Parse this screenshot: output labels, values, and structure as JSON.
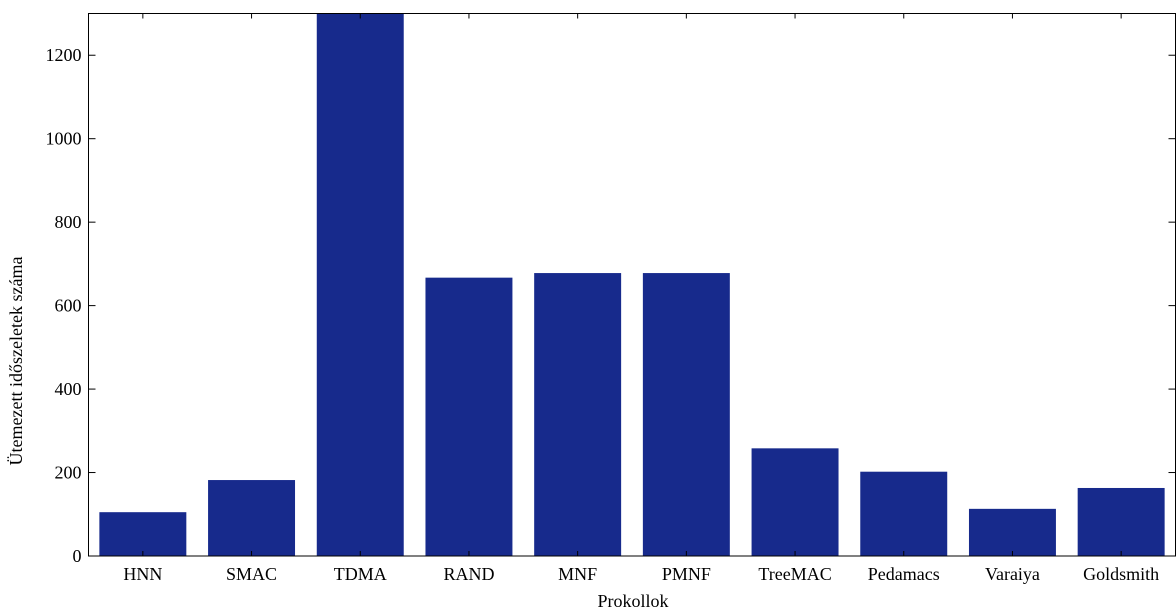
{
  "chart_data": {
    "type": "bar",
    "categories": [
      "HNN",
      "SMAC",
      "TDMA",
      "RAND",
      "MNF",
      "PMNF",
      "TreeMAC",
      "Pedamacs",
      "Varaiya",
      "Goldsmith"
    ],
    "values": [
      105,
      182,
      1300,
      667,
      678,
      678,
      258,
      202,
      113,
      163
    ],
    "xlabel": "Prokollok",
    "ylabel": "Ütemezett időszeletek száma",
    "ylim": [
      0,
      1300
    ],
    "yticks": [
      0,
      200,
      400,
      600,
      800,
      1000,
      1200
    ],
    "grid": false,
    "bar_color": "#172a8c"
  }
}
